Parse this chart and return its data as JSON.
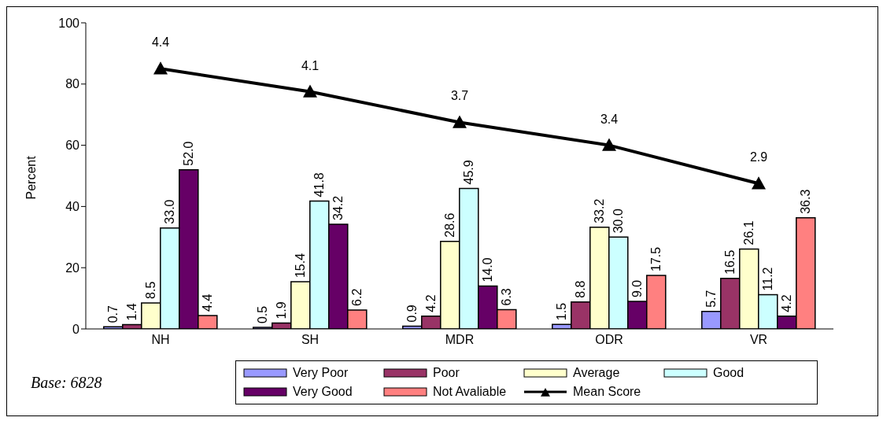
{
  "chart_data": {
    "type": "bar",
    "categories": [
      "NH",
      "SH",
      "MDR",
      "ODR",
      "VR"
    ],
    "ylabel": "Percent",
    "ylim": [
      0,
      100
    ],
    "yticks": [
      0,
      20,
      40,
      60,
      80,
      100
    ],
    "y2lim": [
      1,
      5
    ],
    "grid": false,
    "legend": "bottom",
    "marker": "triangle",
    "annotations": [
      "Base: 6828"
    ],
    "series": [
      {
        "name": "Very Poor",
        "color": "#9999ff",
        "values": [
          0.7,
          0.5,
          0.9,
          1.5,
          5.7
        ],
        "value_labels": [
          "0.7",
          "0.5",
          "0.9",
          "1.5",
          "5.7"
        ]
      },
      {
        "name": "Poor",
        "color": "#993366",
        "values": [
          1.4,
          1.9,
          4.2,
          8.8,
          16.5
        ],
        "value_labels": [
          "1.4",
          "1.9",
          "4.2",
          "8.8",
          "16.5"
        ]
      },
      {
        "name": "Average",
        "color": "#ffffcc",
        "values": [
          8.5,
          15.4,
          28.6,
          33.2,
          26.1
        ],
        "value_labels": [
          "8.5",
          "15.4",
          "28.6",
          "33.2",
          "26.1"
        ]
      },
      {
        "name": "Good",
        "color": "#ccffff",
        "values": [
          33.0,
          41.8,
          45.9,
          30.0,
          11.2
        ],
        "value_labels": [
          "33.0",
          "41.8",
          "45.9",
          "30.0",
          "11.2"
        ]
      },
      {
        "name": "Very Good",
        "color": "#660066",
        "values": [
          52.0,
          34.2,
          14.0,
          9.0,
          4.2
        ],
        "value_labels": [
          "52.0",
          "34.2",
          "14.0",
          "9.0",
          "4.2"
        ]
      },
      {
        "name": "Not Avaliable",
        "color": "#ff8080",
        "values": [
          4.4,
          6.2,
          6.3,
          17.5,
          36.3
        ],
        "value_labels": [
          "4.4",
          "6.2",
          "6.3",
          "17.5",
          "36.3"
        ]
      },
      {
        "name": "Mean Score",
        "type": "line",
        "axis": "y2",
        "color": "#000000",
        "values": [
          4.4,
          4.1,
          3.7,
          3.4,
          2.9
        ],
        "value_labels": [
          "4.4",
          "4.1",
          "3.7",
          "3.4",
          "2.9"
        ]
      }
    ]
  }
}
